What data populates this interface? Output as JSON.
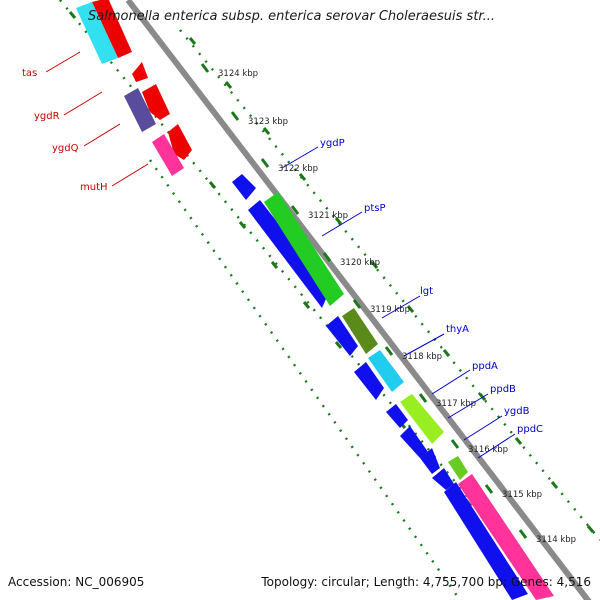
{
  "title": "Salmonella enterica subsp. enterica serovar Choleraesuis str...",
  "footer": {
    "accession": "Accession: NC_006905",
    "summary": "Topology: circular; Length: 4,755,700 bp; Genes: 4,516"
  },
  "colors": {
    "background": "#ffffff",
    "backbone": "#888888",
    "tick": "#1a7a1a",
    "reverse_label": "#cc0000",
    "forward_label": "#0000cc"
  },
  "ruler": [
    {
      "label": "3124 kbp"
    },
    {
      "label": "3123 kbp"
    },
    {
      "label": "3122 kbp"
    },
    {
      "label": "3121 kbp"
    },
    {
      "label": "3120 kbp"
    },
    {
      "label": "3119 kbp"
    },
    {
      "label": "3118 kbp"
    },
    {
      "label": "3117 kbp"
    },
    {
      "label": "3116 kbp"
    },
    {
      "label": "3115 kbp"
    },
    {
      "label": "3114 kbp"
    }
  ],
  "genes_reverse": [
    {
      "label": "tas",
      "color": "#ff0000"
    },
    {
      "label": "ygdR",
      "color": "#ff0000"
    },
    {
      "label": "ygdQ",
      "color": "#ff0000"
    },
    {
      "label": "mutH",
      "color": "#ff0000"
    }
  ],
  "genes_forward": [
    {
      "label": "ygdP",
      "color": "#1a1aff"
    },
    {
      "label": "ptsP",
      "color": "#1a1aff"
    },
    {
      "label": "lgt",
      "color": "#1a1aff"
    },
    {
      "label": "thyA",
      "color": "#1a1aff"
    },
    {
      "label": "ppdA",
      "color": "#1a1aff"
    },
    {
      "label": "ppdB",
      "color": "#1a1aff"
    },
    {
      "label": "ygdB",
      "color": "#1a1aff"
    },
    {
      "label": "ppdC",
      "color": "#1a1aff"
    }
  ],
  "cog_colors": [
    "#22dd22",
    "#5a8a1a",
    "#22ccee",
    "#99ee22",
    "#ff3399",
    "#6655aa",
    "#ff2277",
    "#55eeff"
  ]
}
